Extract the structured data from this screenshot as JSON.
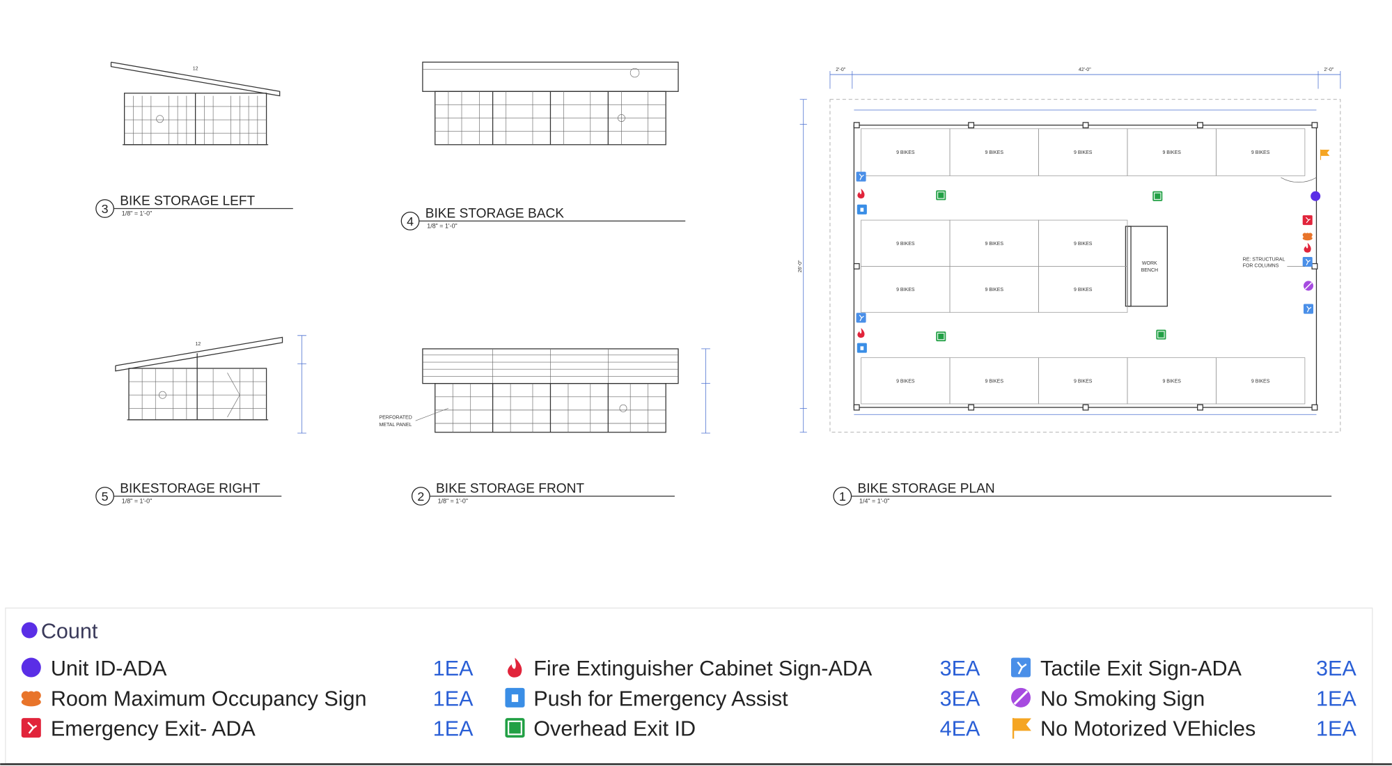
{
  "drawings": [
    {
      "number": "3",
      "title": "BIKE STORAGE LEFT",
      "scale": "1/8\" = 1'-0\""
    },
    {
      "number": "4",
      "title": "BIKE STORAGE BACK",
      "scale": "1/8\" = 1'-0\""
    },
    {
      "number": "5",
      "title": "BIKESTORAGE RIGHT",
      "scale": "1/8\" = 1'-0\""
    },
    {
      "number": "2",
      "title": "BIKE STORAGE FRONT",
      "scale": "1/8\" = 1'-0\""
    },
    {
      "number": "1",
      "title": "BIKE STORAGE PLAN",
      "scale": "1/4\" = 1'-0\""
    }
  ],
  "notes": {
    "perforated": [
      "PERFORATED",
      "METAL PANEL"
    ],
    "work_bench": [
      "WORK",
      "BENCH"
    ],
    "structural": [
      "RE: STRUCTURAL",
      "FOR COLUMNS"
    ],
    "overall_width": "42'-0\"",
    "end_width": "2'-0\"",
    "overall_depth": "26'-0\"",
    "roof_pitch": "12"
  },
  "bays": [
    "9 BIKES",
    "9 BIKES",
    "9 BIKES",
    "9 BIKES",
    "9 BIKES",
    "9 BIKES",
    "9 BIKES",
    "9 BIKES",
    "9 BIKES",
    "9 BIKES",
    "9 BIKES",
    "9 BIKES",
    "9 BIKES",
    "9 BIKES",
    "9 BIKES",
    "9 BIKES"
  ],
  "legend": {
    "title": "Count",
    "items": [
      {
        "name": "Unit ID-ADA",
        "count": "1EA"
      },
      {
        "name": "Room Maximum Occupancy Sign",
        "count": "1EA"
      },
      {
        "name": "Emergency Exit- ADA",
        "count": "1EA"
      },
      {
        "name": "Fire Extinguisher Cabinet Sign-ADA",
        "count": "3EA"
      },
      {
        "name": "Push for Emergency Assist",
        "count": "3EA"
      },
      {
        "name": "Overhead Exit ID",
        "count": "4EA"
      },
      {
        "name": "Tactile Exit Sign-ADA",
        "count": "3EA"
      },
      {
        "name": "No Smoking Sign",
        "count": "1EA"
      },
      {
        "name": "No Motorized VEhicles",
        "count": "1EA"
      }
    ]
  }
}
